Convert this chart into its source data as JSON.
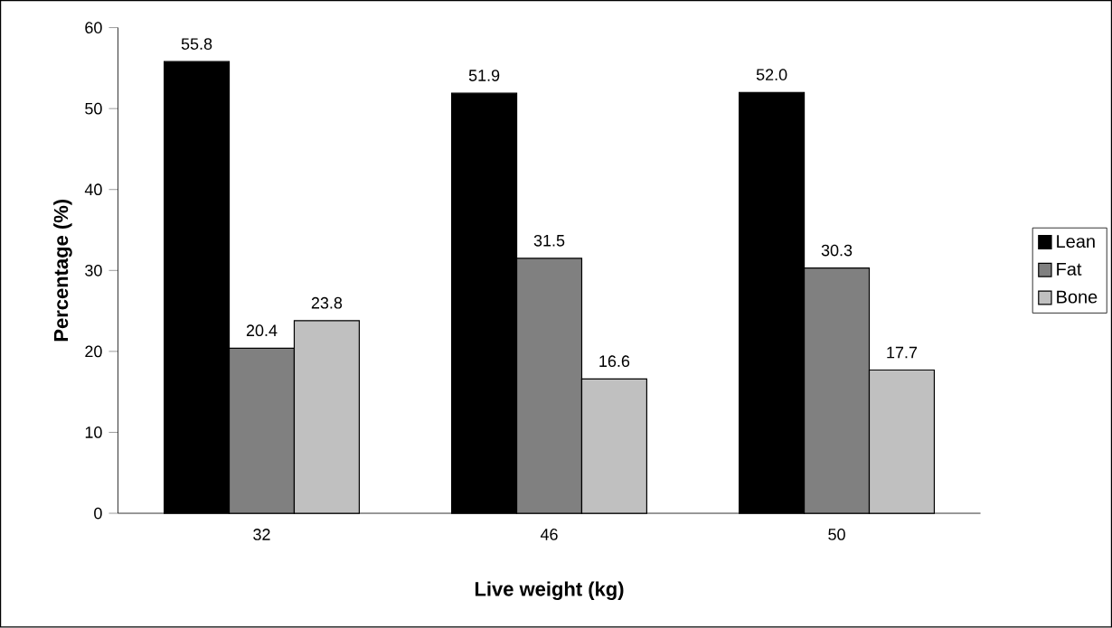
{
  "chart_data": {
    "type": "bar",
    "xlabel": "Live weight (kg)",
    "ylabel": "Percentage (%)",
    "categories": [
      "32",
      "46",
      "50"
    ],
    "series": [
      {
        "name": "Lean",
        "color": "#000000",
        "values": [
          55.8,
          51.9,
          52.0
        ],
        "value_labels": [
          "55.8",
          "51.9",
          "52.0"
        ]
      },
      {
        "name": "Fat",
        "color": "#808080",
        "values": [
          20.4,
          31.5,
          30.3
        ],
        "value_labels": [
          "20.4",
          "31.5",
          "30.3"
        ]
      },
      {
        "name": "Bone",
        "color": "#c0c0c0",
        "values": [
          23.8,
          16.6,
          17.7
        ],
        "value_labels": [
          "23.8",
          "16.6",
          "17.7"
        ]
      }
    ],
    "ylim": [
      0,
      60
    ],
    "yticks": [
      0,
      10,
      20,
      30,
      40,
      50,
      60
    ],
    "grid": false,
    "legend": "right"
  }
}
